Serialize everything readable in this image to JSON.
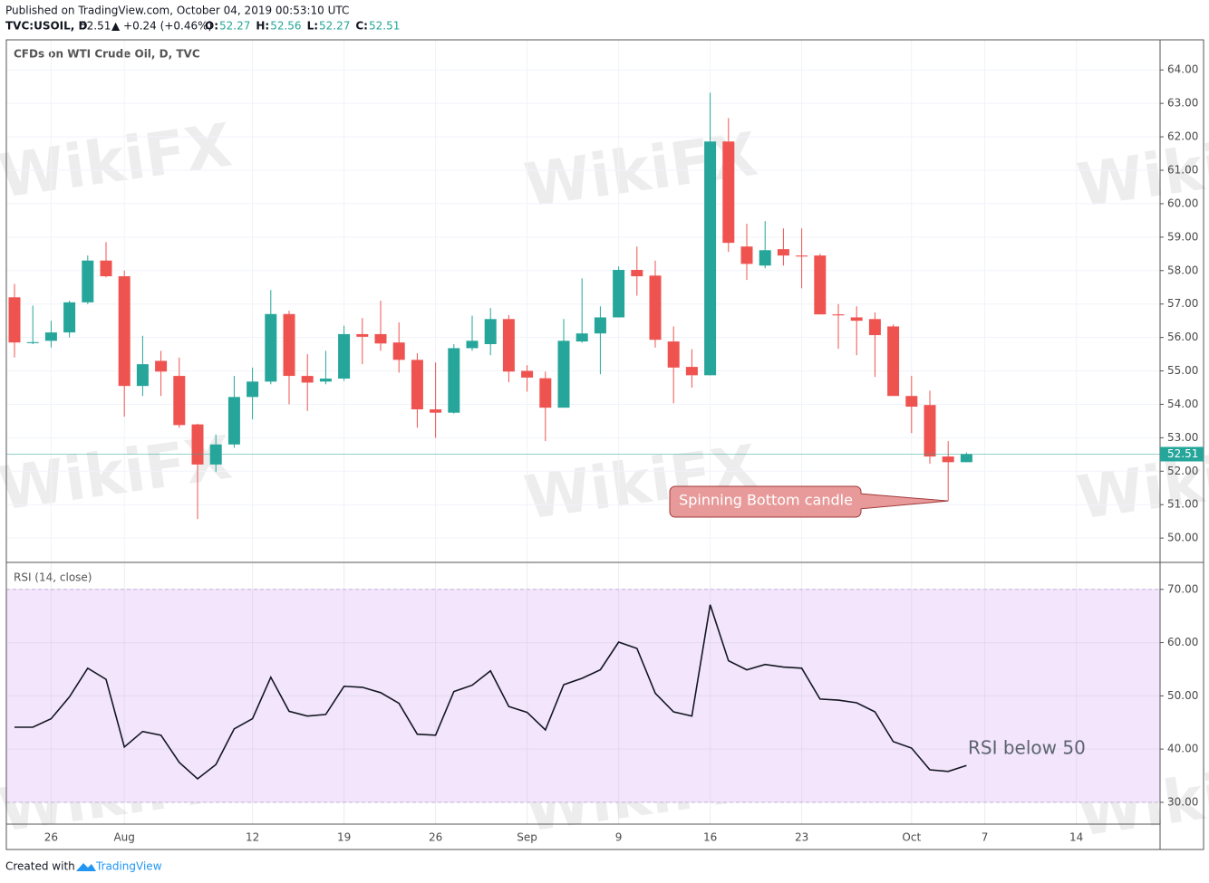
{
  "header": {
    "published": "Published on TradingView.com, October 04, 2019 00:53:10 UTC",
    "symbol": "TVC:USOIL, D",
    "change": "▲ +0.24 (+0.46%)",
    "ohlc": [
      {
        "key": "O:",
        "value": "52.27"
      },
      {
        "key": "H:",
        "value": "52.56"
      },
      {
        "key": "L:",
        "value": "52.27"
      },
      {
        "key": "C:",
        "value": "52.51"
      }
    ]
  },
  "watermark": "WikiFX",
  "chart_data": [
    {
      "type": "candlestick",
      "title": "CFDs on WTI Crude Oil, D, TVC",
      "open": [
        57.2,
        55.83,
        55.9,
        56.15,
        57.05,
        58.3,
        57.83,
        54.55,
        55.3,
        54.85,
        53.4,
        52.2,
        52.8,
        54.22,
        54.68,
        56.7,
        54.85,
        54.68,
        54.77,
        56.1,
        56.1,
        55.85,
        55.33,
        53.85,
        53.75,
        55.68,
        55.8,
        56.55,
        55.0,
        54.78,
        53.9,
        55.88,
        56.12,
        56.6,
        58.02,
        57.85,
        55.88,
        55.12,
        54.87,
        61.86,
        58.72,
        58.15,
        58.64,
        58.45,
        58.45,
        56.69,
        56.6,
        56.55,
        56.33,
        54.25,
        53.98,
        52.44,
        52.27,
        null,
        null,
        null,
        null,
        null,
        null
      ],
      "high": [
        57.6,
        56.95,
        56.5,
        57.1,
        58.45,
        58.85,
        58.0,
        56.05,
        55.6,
        55.4,
        53.42,
        53.1,
        54.85,
        55.1,
        57.42,
        56.8,
        55.5,
        55.6,
        56.35,
        56.58,
        57.1,
        56.45,
        55.53,
        55.25,
        55.8,
        56.65,
        56.88,
        56.67,
        55.17,
        54.98,
        56.55,
        57.77,
        56.93,
        58.12,
        58.72,
        58.3,
        56.33,
        55.65,
        63.32,
        62.56,
        59.4,
        59.48,
        59.26,
        59.26,
        58.5,
        57.0,
        56.93,
        56.75,
        56.39,
        54.85,
        54.41,
        52.9,
        52.56,
        null,
        null,
        null,
        null,
        null,
        null
      ],
      "low": [
        55.4,
        55.8,
        55.7,
        56.0,
        57.0,
        57.8,
        53.63,
        54.25,
        54.25,
        53.3,
        50.57,
        51.98,
        52.7,
        53.55,
        54.6,
        54.0,
        53.8,
        54.6,
        54.7,
        55.2,
        55.6,
        54.95,
        53.3,
        53.0,
        53.72,
        55.6,
        55.47,
        54.66,
        54.38,
        52.9,
        53.9,
        55.84,
        54.9,
        56.6,
        57.25,
        55.7,
        54.03,
        54.5,
        54.87,
        58.56,
        57.72,
        58.07,
        58.15,
        57.47,
        56.69,
        55.66,
        55.47,
        54.82,
        54.25,
        53.14,
        52.22,
        51.11,
        52.27,
        null,
        null,
        null,
        null,
        null,
        null
      ],
      "close": [
        55.85,
        55.86,
        56.15,
        57.05,
        58.3,
        57.83,
        54.55,
        55.2,
        54.98,
        53.38,
        52.2,
        52.8,
        54.22,
        54.68,
        56.7,
        54.85,
        54.65,
        54.77,
        56.1,
        56.02,
        55.82,
        55.33,
        53.85,
        53.75,
        55.68,
        55.9,
        56.55,
        54.98,
        54.8,
        53.9,
        55.9,
        56.12,
        56.6,
        58.02,
        57.83,
        55.93,
        55.1,
        54.87,
        61.86,
        58.83,
        58.2,
        58.61,
        58.45,
        58.42,
        56.69,
        56.66,
        56.5,
        56.07,
        54.25,
        53.93,
        52.44,
        52.27,
        52.51,
        null,
        null,
        null,
        null,
        null,
        null
      ],
      "up_color": "#26a69a",
      "down_color": "#ef5350",
      "last_value": {
        "value": 52.51,
        "label": "52.51"
      },
      "ylim": [
        49.3,
        64.9
      ],
      "yticks": [
        {
          "value": 50,
          "label": "50.00"
        },
        {
          "value": 51,
          "label": "51.00"
        },
        {
          "value": 52,
          "label": "52.00"
        },
        {
          "value": 53,
          "label": "53.00"
        },
        {
          "value": 54,
          "label": "54.00"
        },
        {
          "value": 55,
          "label": "55.00"
        },
        {
          "value": 56,
          "label": "56.00"
        },
        {
          "value": 57,
          "label": "57.00"
        },
        {
          "value": 58,
          "label": "58.00"
        },
        {
          "value": 59,
          "label": "59.00"
        },
        {
          "value": 60,
          "label": "60.00"
        },
        {
          "value": 61,
          "label": "61.00"
        },
        {
          "value": 62,
          "label": "62.00"
        },
        {
          "value": 63,
          "label": "63.00"
        },
        {
          "value": 64,
          "label": "64.00"
        }
      ],
      "grid": true,
      "annotation": "Spinning Bottom candle"
    },
    {
      "type": "line",
      "title": "RSI (14, close)",
      "categories": [
        null,
        null,
        "26",
        null,
        null,
        null,
        "Aug",
        null,
        null,
        null,
        null,
        null,
        null,
        "12",
        null,
        null,
        null,
        null,
        "19",
        null,
        null,
        null,
        null,
        "26",
        null,
        null,
        null,
        null,
        "Sep",
        null,
        null,
        null,
        null,
        "9",
        null,
        null,
        null,
        null,
        "16",
        null,
        null,
        null,
        null,
        "23",
        null,
        null,
        null,
        null,
        null,
        "Oct",
        null,
        null,
        null,
        "7",
        null,
        null,
        null,
        null,
        "14"
      ],
      "series": [
        {
          "name": "RSI",
          "color": "#131722",
          "values": [
            44.1,
            44.1,
            45.7,
            49.8,
            55.2,
            53.1,
            40.4,
            43.3,
            42.6,
            37.5,
            34.4,
            37.1,
            43.8,
            45.7,
            53.5,
            47.1,
            46.2,
            46.5,
            51.8,
            51.6,
            50.6,
            48.6,
            42.8,
            42.6,
            50.8,
            52.0,
            54.7,
            48.0,
            46.9,
            43.6,
            52.1,
            53.3,
            54.9,
            60.1,
            58.9,
            50.5,
            47.0,
            46.2,
            67.1,
            56.6,
            54.9,
            55.9,
            55.4,
            55.2,
            49.4,
            49.2,
            48.7,
            47.0,
            41.4,
            40.2,
            36.1,
            35.8,
            36.9,
            null,
            null,
            null,
            null,
            null,
            null
          ]
        }
      ],
      "band": [
        30,
        70
      ],
      "band_color": "#f3e5fc",
      "ylim": [
        25.9,
        74.9
      ],
      "yticks": [
        {
          "value": 30,
          "label": "30.00"
        },
        {
          "value": 40,
          "label": "40.00"
        },
        {
          "value": 50,
          "label": "50.00"
        },
        {
          "value": 60,
          "label": "60.00"
        },
        {
          "value": 70,
          "label": "70.00"
        }
      ],
      "grid": true,
      "annotation": "RSI below 50"
    }
  ],
  "footer": {
    "created": "Created with",
    "brand": "TradingView"
  }
}
